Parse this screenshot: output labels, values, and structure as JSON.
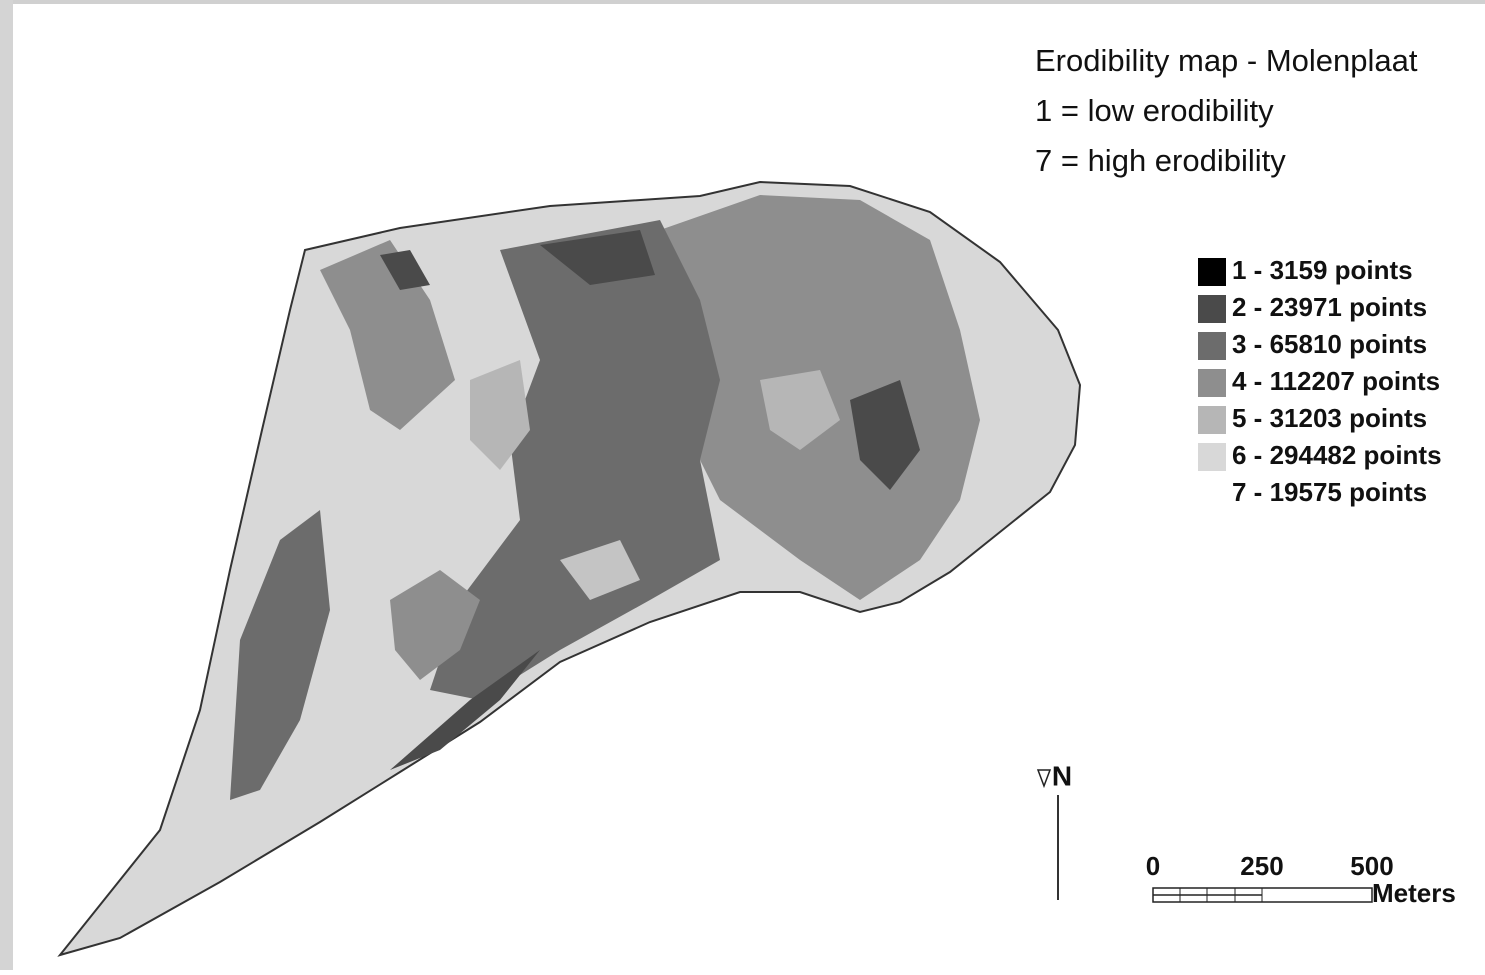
{
  "title": {
    "lines": [
      "Erodibility map - Molenplaat",
      "1 = low erodibility",
      "7 = high erodibility"
    ]
  },
  "legend": {
    "items": [
      {
        "label": "1 - 3159 points",
        "color": "#000000"
      },
      {
        "label": "2 - 23971 points",
        "color": "#4a4a4a"
      },
      {
        "label": "3 - 65810 points",
        "color": "#6c6c6c"
      },
      {
        "label": "4 - 112207 points",
        "color": "#8e8e8e"
      },
      {
        "label": "5 - 31203 points",
        "color": "#b6b6b6"
      },
      {
        "label": "6 - 294482 points",
        "color": "#d8d8d8"
      },
      {
        "label": "7 - 19575 points",
        "color": "#ffffff"
      }
    ]
  },
  "north": "N",
  "scale_bar": {
    "ticks": [
      "0",
      "250",
      "500"
    ],
    "unit": "Meters"
  }
}
